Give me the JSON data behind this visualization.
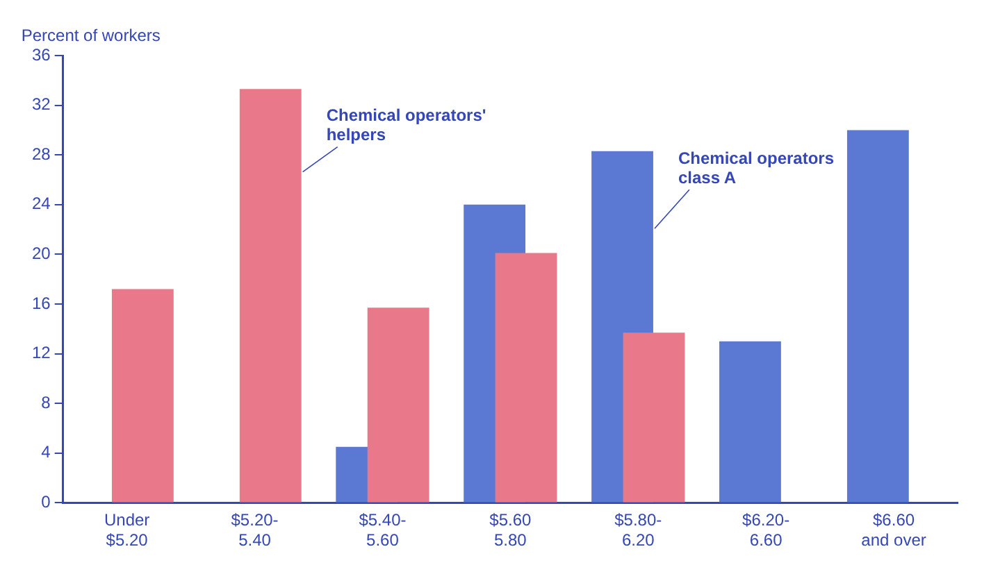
{
  "chart_data": {
    "type": "bar",
    "ylabel": "Percent of workers",
    "categories": [
      "Under\n$5.20",
      "$5.20-\n5.40",
      "$5.40-\n5.60",
      "$5.60\n5.80",
      "$5.80-\n6.20",
      "$6.20-\n6.60",
      "$6.60\nand over"
    ],
    "series": [
      {
        "name": "Chemical operators\nclass A",
        "color": "#5b78d2",
        "values": [
          null,
          null,
          4.5,
          24,
          28.3,
          13,
          30
        ]
      },
      {
        "name": "Chemical operators'\nhelpers",
        "color": "#e8788a",
        "values": [
          17.2,
          33.3,
          15.7,
          20.1,
          13.7,
          null,
          null
        ]
      }
    ],
    "ylim": [
      0,
      36
    ],
    "yticks": [
      0,
      4,
      8,
      12,
      16,
      20,
      24,
      28,
      32,
      36
    ],
    "grid": false,
    "legend": false
  }
}
